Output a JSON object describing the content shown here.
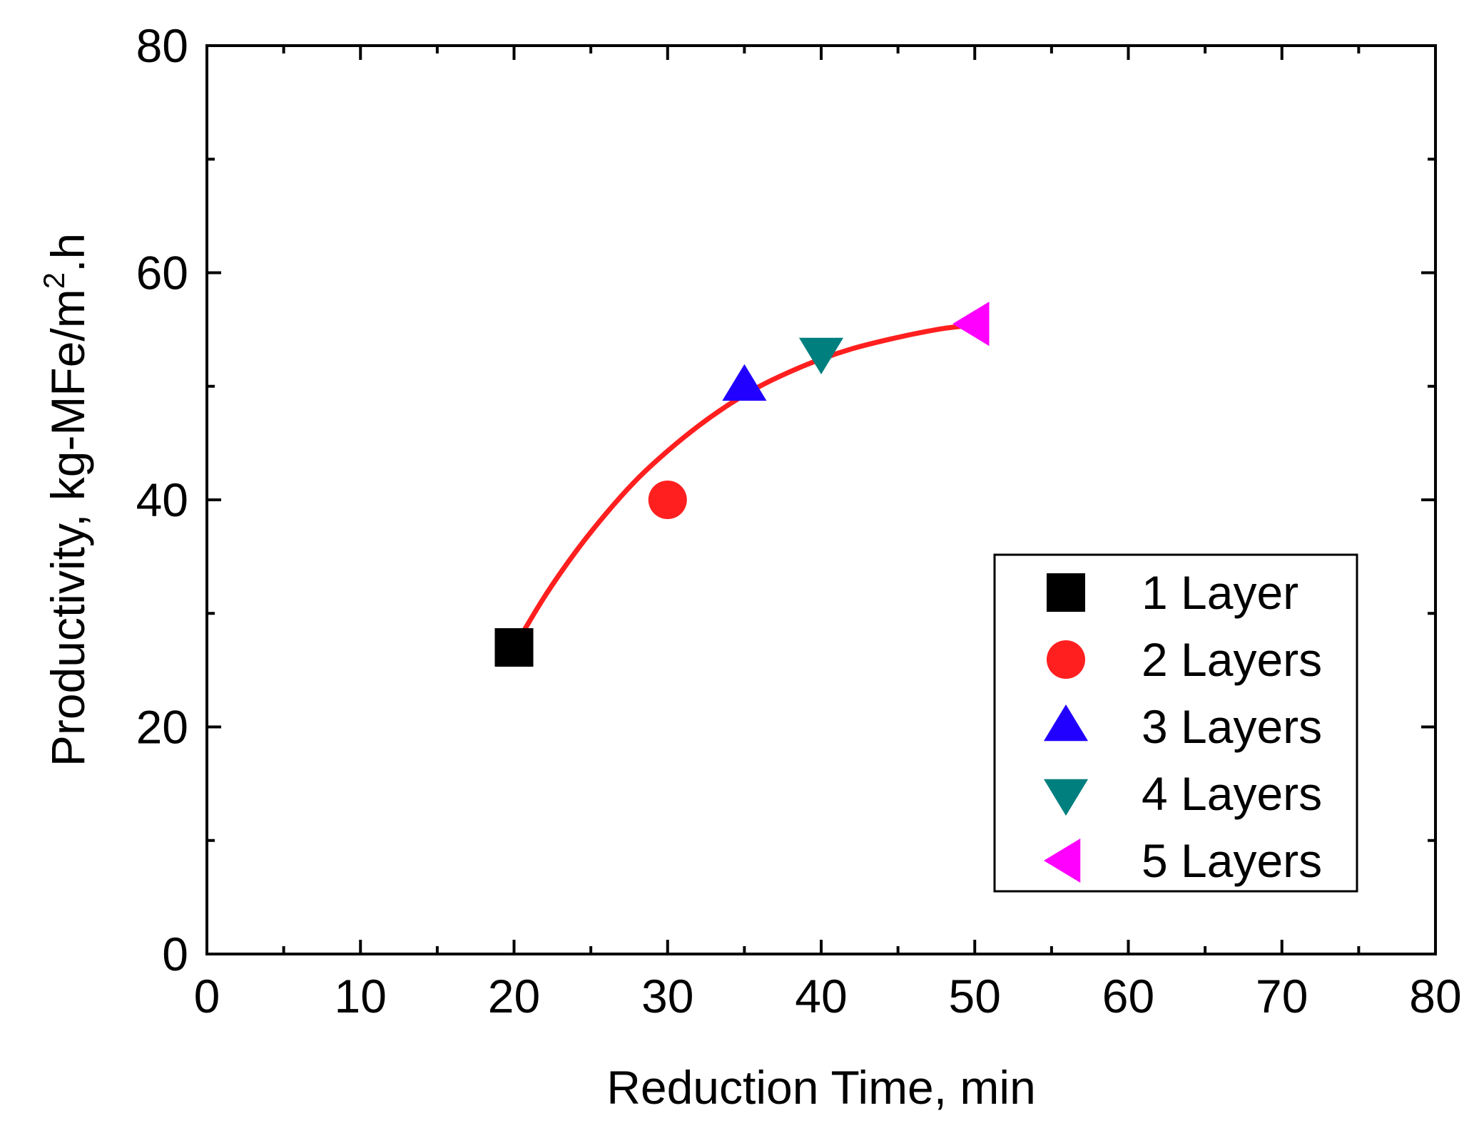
{
  "chart_data": {
    "type": "scatter",
    "title": "",
    "xlabel": "Reduction Time, min",
    "ylabel": "Productivity, kg-MFe/m",
    "ylabel_superscript": "2",
    "ylabel_suffix": ".h",
    "xlim": [
      0,
      80
    ],
    "ylim": [
      0,
      80
    ],
    "x_major_ticks": [
      0,
      10,
      20,
      30,
      40,
      50,
      60,
      70,
      80
    ],
    "x_tick_labels": [
      "0",
      "10",
      "20",
      "30",
      "40",
      "50",
      "60",
      "70",
      "80"
    ],
    "y_major_ticks": [
      0,
      20,
      40,
      60,
      80
    ],
    "y_tick_labels": [
      "0",
      "20",
      "40",
      "60",
      "80"
    ],
    "x_minor_step": 5,
    "y_minor_step": 10,
    "grid": false,
    "legend_position": "bottom-right",
    "series": [
      {
        "name": "1 Layer",
        "marker": "square",
        "color": "#000000",
        "x": [
          20
        ],
        "y": [
          27
        ]
      },
      {
        "name": "2 Layers",
        "marker": "circle",
        "color": "#ff1f1f",
        "x": [
          30
        ],
        "y": [
          40
        ]
      },
      {
        "name": "3 Layers",
        "marker": "triangle-up",
        "color": "#2200ff",
        "x": [
          35
        ],
        "y": [
          50
        ]
      },
      {
        "name": "4 Layers",
        "marker": "triangle-down",
        "color": "#007f7f",
        "x": [
          40
        ],
        "y": [
          53
        ]
      },
      {
        "name": "5 Layers",
        "marker": "triangle-left",
        "color": "#ff00ff",
        "x": [
          50
        ],
        "y": [
          55.5
        ]
      }
    ],
    "fit_curve": {
      "color": "#ff1f1f",
      "x": [
        20,
        22,
        24,
        26,
        28,
        30,
        32,
        34,
        36,
        38,
        40,
        42,
        44,
        46,
        48,
        50
      ],
      "y": [
        27,
        31.5,
        35.4,
        38.8,
        41.8,
        44.3,
        46.5,
        48.4,
        50.0,
        51.3,
        52.4,
        53.3,
        54.0,
        54.6,
        55.1,
        55.4
      ]
    }
  }
}
